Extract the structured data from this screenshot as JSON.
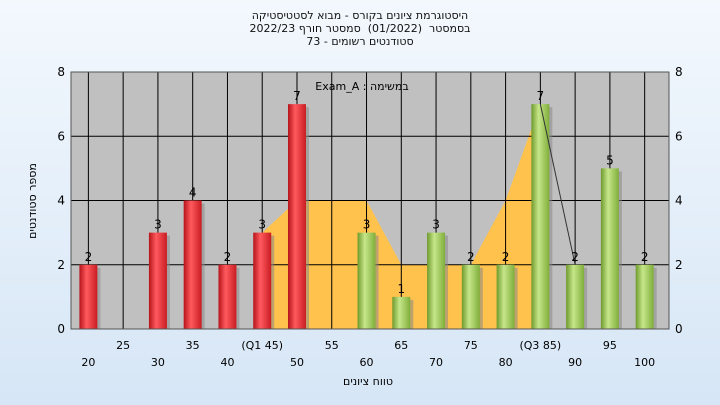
{
  "chart_data": {
    "type": "bar",
    "title_lines": [
      "היסטוגרמת ציונים בקורס - מבוא לסטטיסטיקה",
      "בסמסטר  (01/2022)  סמסטר חורף 2022/23",
      "סטודנטים רשומים - 73"
    ],
    "annotation": "Exam_A : במשימה",
    "xlabel": "טווח ציונים",
    "ylabel": "מספר סטודנטים",
    "ylim": [
      0,
      8
    ],
    "yticks": [
      0,
      2,
      4,
      6,
      8
    ],
    "grid": true,
    "x_tick_labels": [
      {
        "x": 20,
        "label": "20"
      },
      {
        "x": 25,
        "label": "25"
      },
      {
        "x": 30,
        "label": "30"
      },
      {
        "x": 35,
        "label": "35"
      },
      {
        "x": 40,
        "label": "40"
      },
      {
        "x": 45,
        "label": "(Q1 45)"
      },
      {
        "x": 50,
        "label": "50"
      },
      {
        "x": 55,
        "label": "55"
      },
      {
        "x": 60,
        "label": "60"
      },
      {
        "x": 65,
        "label": "65"
      },
      {
        "x": 70,
        "label": "70"
      },
      {
        "x": 75,
        "label": "75"
      },
      {
        "x": 80,
        "label": "80"
      },
      {
        "x": 85,
        "label": "(Q3 85)"
      },
      {
        "x": 90,
        "label": "90"
      },
      {
        "x": 95,
        "label": "95"
      },
      {
        "x": 100,
        "label": "100"
      }
    ],
    "bars": [
      {
        "x": 20,
        "value": 2,
        "group": "below_median"
      },
      {
        "x": 30,
        "value": 3,
        "group": "below_median"
      },
      {
        "x": 35,
        "value": 4,
        "group": "below_median"
      },
      {
        "x": 40,
        "value": 2,
        "group": "below_median"
      },
      {
        "x": 45,
        "value": 3,
        "group": "below_median"
      },
      {
        "x": 50,
        "value": 7,
        "group": "below_median"
      },
      {
        "x": 60,
        "value": 3,
        "group": "above_median"
      },
      {
        "x": 65,
        "value": 1,
        "group": "above_median"
      },
      {
        "x": 70,
        "value": 3,
        "group": "above_median"
      },
      {
        "x": 75,
        "value": 2,
        "group": "above_median"
      },
      {
        "x": 80,
        "value": 2,
        "group": "above_median"
      },
      {
        "x": 85,
        "value": 7,
        "group": "above_median"
      },
      {
        "x": 90,
        "value": 2,
        "group": "above_median"
      },
      {
        "x": 95,
        "value": 5,
        "group": "above_median"
      },
      {
        "x": 100,
        "value": 2,
        "group": "above_median"
      }
    ],
    "area": {
      "x": [
        45,
        50,
        55,
        60,
        65,
        70,
        75,
        80,
        85
      ],
      "values": [
        3,
        4,
        4,
        4,
        2,
        2,
        2,
        4,
        7
      ]
    },
    "trend_line": {
      "x": [
        85,
        90
      ],
      "values": [
        7,
        2
      ]
    },
    "colors": {
      "plot_background": "#c0c0c0",
      "area_fill": "#ffc24d",
      "red_bar": "#e8242c",
      "green_bar": "#8fc044",
      "grid": "#000000"
    }
  }
}
